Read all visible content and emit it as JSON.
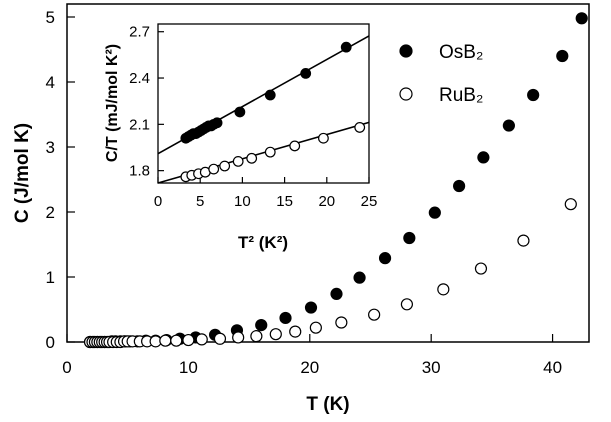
{
  "chart_data": [
    {
      "type": "scatter",
      "xlabel": "T (K)",
      "ylabel": "C (J/mol K)",
      "xlim": [
        0,
        43
      ],
      "ylim": [
        0,
        5.2
      ],
      "xticks": [
        0,
        10,
        20,
        30,
        40
      ],
      "yticks": [
        0,
        1,
        2,
        3,
        4,
        5
      ],
      "grid": false,
      "legend_position": "top-right",
      "series": [
        {
          "name": "OsB₂",
          "marker": "filled-circle",
          "x": [
            1.9,
            2.2,
            2.5,
            2.8,
            3.1,
            3.4,
            3.7,
            4.0,
            4.4,
            4.8,
            5.2,
            5.8,
            6.5,
            7.3,
            8.2,
            9.3,
            10.6,
            12.2,
            14.0,
            16.0,
            18.0,
            20.1,
            22.2,
            24.1,
            26.2,
            28.2,
            30.3,
            32.3,
            34.3,
            36.4,
            38.4,
            40.8,
            42.4
          ],
          "y": [
            0.0,
            0.0,
            0.0,
            0.0,
            0.0,
            0.0,
            0.01,
            0.01,
            0.01,
            0.01,
            0.01,
            0.01,
            0.02,
            0.02,
            0.03,
            0.05,
            0.07,
            0.11,
            0.18,
            0.26,
            0.37,
            0.53,
            0.74,
            0.99,
            1.29,
            1.6,
            1.99,
            2.4,
            2.84,
            3.33,
            3.8,
            4.4,
            4.98
          ]
        },
        {
          "name": "RuB₂",
          "marker": "open-circle",
          "x": [
            1.9,
            2.1,
            2.3,
            2.5,
            2.7,
            2.9,
            3.1,
            3.3,
            3.5,
            3.8,
            4.1,
            4.4,
            4.7,
            5.0,
            5.4,
            6.0,
            6.6,
            7.3,
            8.1,
            9.0,
            10.0,
            11.1,
            12.6,
            14.1,
            15.6,
            17.2,
            18.8,
            20.5,
            22.6,
            25.3,
            28.0,
            31.0,
            34.1,
            37.6,
            41.5
          ],
          "y": [
            0.0,
            0.0,
            0.0,
            0.0,
            0.0,
            0.0,
            0.0,
            0.0,
            0.0,
            0.0,
            0.0,
            0.0,
            0.01,
            0.01,
            0.01,
            0.01,
            0.01,
            0.01,
            0.02,
            0.02,
            0.03,
            0.04,
            0.05,
            0.07,
            0.09,
            0.12,
            0.16,
            0.22,
            0.3,
            0.42,
            0.58,
            0.81,
            1.13,
            1.56,
            2.12
          ]
        }
      ]
    },
    {
      "type": "scatter",
      "inset": true,
      "xlabel": "T² (K²)",
      "ylabel": "C/T (mJ/mol K²)",
      "xlim": [
        0,
        25
      ],
      "ylim": [
        1.72,
        2.75
      ],
      "xticks": [
        0,
        5,
        10,
        15,
        20,
        25
      ],
      "yticks": [
        1.8,
        2.1,
        2.4,
        2.7
      ],
      "series": [
        {
          "name": "OsB₂",
          "marker": "filled-circle",
          "x": [
            3.3,
            3.6,
            3.9,
            4.2,
            4.5,
            4.8,
            5.1,
            5.4,
            5.7,
            6.0,
            6.3,
            6.6,
            7.0,
            9.7,
            13.3,
            17.5,
            22.3
          ],
          "y": [
            2.01,
            2.02,
            2.03,
            2.04,
            2.04,
            2.05,
            2.06,
            2.07,
            2.08,
            2.09,
            2.09,
            2.1,
            2.11,
            2.18,
            2.29,
            2.43,
            2.6
          ],
          "fit_line": {
            "intercept": 1.91,
            "slope": 0.0305
          }
        },
        {
          "name": "RuB₂",
          "marker": "open-circle",
          "x": [
            3.3,
            4.0,
            4.8,
            5.6,
            6.6,
            7.9,
            9.5,
            11.1,
            13.3,
            16.2,
            19.6,
            23.9
          ],
          "y": [
            1.76,
            1.77,
            1.78,
            1.79,
            1.81,
            1.83,
            1.86,
            1.88,
            1.92,
            1.96,
            2.01,
            2.08
          ],
          "fit_line": {
            "intercept": 1.72,
            "slope": 0.0157
          }
        }
      ]
    }
  ]
}
